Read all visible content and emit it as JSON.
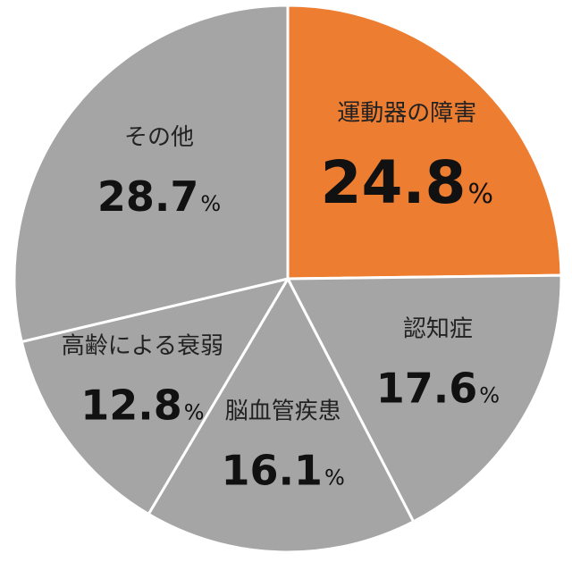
{
  "chart_data": {
    "type": "pie",
    "title": "",
    "unit": "%",
    "start_angle_deg": 0,
    "direction": "clockwise",
    "categories": [
      "運動器の障害",
      "認知症",
      "脳血管疾患",
      "高齢による衰弱",
      "その他"
    ],
    "values": [
      24.8,
      17.6,
      16.1,
      12.8,
      28.7
    ],
    "value_labels": [
      "24.8",
      "17.6",
      "16.1",
      "12.8",
      "28.7"
    ],
    "colors": [
      "#ED7D31",
      "#A5A5A5",
      "#A5A5A5",
      "#A5A5A5",
      "#A5A5A5"
    ],
    "highlight_index": 0
  }
}
